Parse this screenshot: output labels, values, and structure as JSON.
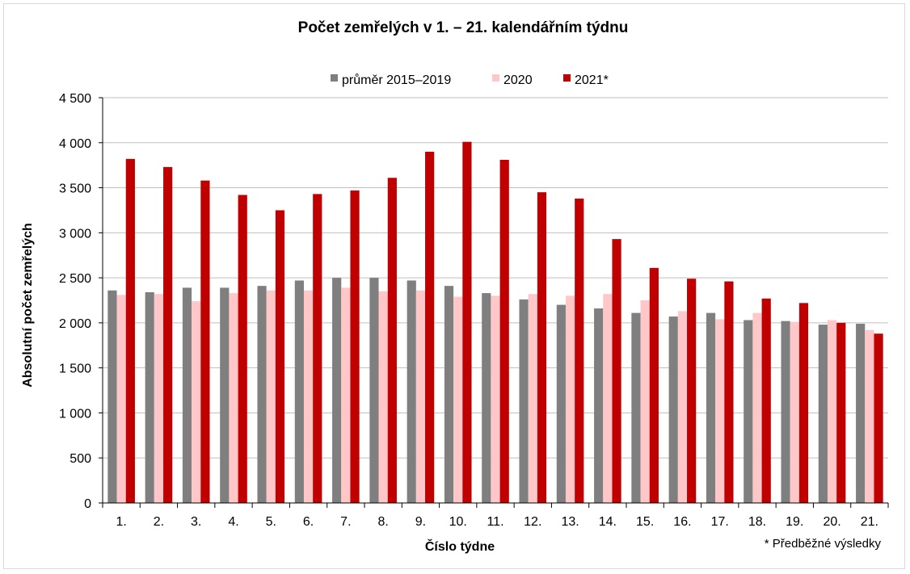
{
  "chart_data": {
    "type": "bar",
    "title": "Počet zemřelých v 1. – 21. kalendářním týdnu",
    "xlabel": "Číslo týdne",
    "ylabel": "Absolutní počet zemřelých",
    "ylim": [
      0,
      4500
    ],
    "yticks": [
      0,
      500,
      1000,
      1500,
      2000,
      2500,
      3000,
      3500,
      4000,
      4500
    ],
    "ytick_labels": [
      "0",
      "500",
      "1 000",
      "1 500",
      "2 000",
      "2 500",
      "3 000",
      "3 500",
      "4 000",
      "4 500"
    ],
    "grid": true,
    "legend_position": "top",
    "categories": [
      "1.",
      "2.",
      "3.",
      "4.",
      "5.",
      "6.",
      "7.",
      "8.",
      "9.",
      "10.",
      "11.",
      "12.",
      "13.",
      "14.",
      "15.",
      "16.",
      "17.",
      "18.",
      "19.",
      "20.",
      "21."
    ],
    "series": [
      {
        "name": "průměr 2015–2019",
        "color": "#7f7f7f",
        "values": [
          2360,
          2340,
          2390,
          2390,
          2410,
          2470,
          2500,
          2500,
          2470,
          2410,
          2330,
          2260,
          2200,
          2160,
          2110,
          2070,
          2110,
          2030,
          2020,
          1980,
          1990
        ]
      },
      {
        "name": "2020",
        "color": "#ffc7c7",
        "values": [
          2310,
          2320,
          2240,
          2330,
          2360,
          2360,
          2390,
          2350,
          2360,
          2290,
          2300,
          2320,
          2300,
          2320,
          2250,
          2130,
          2040,
          2110,
          2010,
          2030,
          1920
        ]
      },
      {
        "name": "2021*",
        "color": "#c00000",
        "values": [
          3820,
          3730,
          3580,
          3420,
          3250,
          3430,
          3470,
          3610,
          3900,
          4010,
          3810,
          3450,
          3380,
          2930,
          2610,
          2490,
          2460,
          2270,
          2220,
          2000,
          1880
        ]
      }
    ],
    "footnote": "* Předběžné výsledky"
  }
}
